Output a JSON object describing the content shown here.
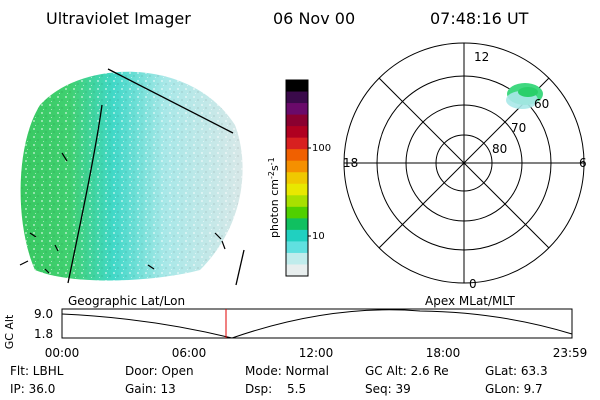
{
  "header": {
    "title": "Ultraviolet Imager",
    "date": "06 Nov 00",
    "time": "07:48:16 UT"
  },
  "colorbar": {
    "label_html": "photon cm<tspan baseline-shift='super' font-size='8'>-2</tspan>s<tspan baseline-shift='super' font-size='8'>-1</tspan>",
    "label": "photon cm-2s-1",
    "ticks": [
      "100",
      "10"
    ],
    "colors": [
      "#000000",
      "#3a0a4a",
      "#6a0a6a",
      "#8a0030",
      "#b00020",
      "#d82020",
      "#f06000",
      "#f59000",
      "#f0c800",
      "#e8e800",
      "#a8e000",
      "#50d000",
      "#10c060",
      "#20d0c0",
      "#60e0e0",
      "#c0ecec",
      "#e8eeee"
    ]
  },
  "polar_plot": {
    "mlt_labels": [
      "12",
      "18",
      "6",
      "0"
    ],
    "lat_labels": [
      "60",
      "70",
      "80"
    ]
  },
  "map_labels": {
    "left": "Geographic Lat/Lon",
    "right": "Apex MLat/MLT"
  },
  "altitude_plot": {
    "axis_label": "GC Alt",
    "y_ticks": [
      "9.0",
      "1.8"
    ],
    "x_ticks": [
      "00:00",
      "06:00",
      "12:00",
      "18:00",
      "23:59"
    ],
    "marker_color": "#e00000"
  },
  "info": {
    "flt": "Flt: LBHL",
    "door": "Door: Open",
    "mode": "Mode: Normal",
    "gc_alt": "GC Alt: 2.6 Re",
    "glat": "GLat:  63.3",
    "ip": "IP: 36.0",
    "gain": "Gain: 13",
    "dsp_label": "Dsp:",
    "dsp_value": "5.5",
    "seq": "Seq: 39",
    "glon": "GLon:   9.7"
  }
}
